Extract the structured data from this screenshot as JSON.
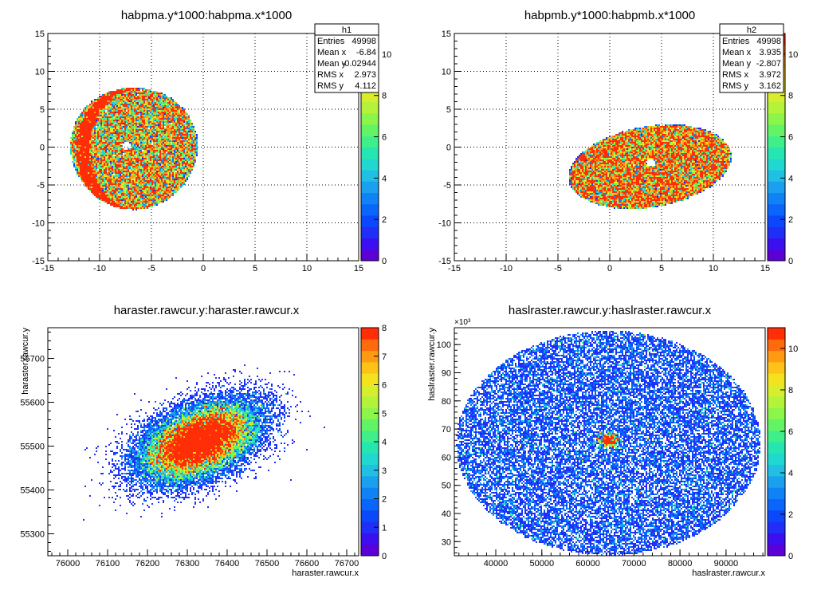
{
  "colors": {
    "background": "#ffffff",
    "frame": "#000000",
    "grid": "#000000",
    "palette": [
      "#5b00d6",
      "#3b0ff0",
      "#1f2ff8",
      "#0b48fb",
      "#0a66fa",
      "#0f82f6",
      "#1aa0ef",
      "#1fc0e4",
      "#20d8d0",
      "#25e6b0",
      "#3ff08a",
      "#62f465",
      "#8cf54a",
      "#b4f33a",
      "#d8ee2c",
      "#f4e21f",
      "#ffc318",
      "#ff9a12",
      "#ff6a0c",
      "#ff2e06"
    ]
  },
  "chart_data": [
    {
      "type": "heatmap",
      "title": "habpma.y*1000:habpma.x*1000",
      "xlabel": "",
      "ylabel": "",
      "xlim": [
        -15,
        15
      ],
      "ylim": [
        -15,
        15
      ],
      "xticks": [
        "-15",
        "-10",
        "-5",
        "0",
        "5",
        "10",
        "15"
      ],
      "yticks": [
        "-15",
        "-10",
        "-5",
        "0",
        "5",
        "10",
        "15"
      ],
      "grid": true,
      "color_scale": {
        "min": 0,
        "max": 11,
        "ticks": [
          "0",
          "2",
          "4",
          "6",
          "8",
          "10"
        ]
      },
      "stats_box": {
        "name": "h1",
        "rows": [
          {
            "label": "Entries",
            "value": "49998"
          },
          {
            "label": "Mean x",
            "value": "-6.84"
          },
          {
            "label": "Mean y",
            "value": "-0.02944"
          },
          {
            "label": "RMS x",
            "value": "2.973"
          },
          {
            "label": "RMS y",
            "value": "4.112"
          }
        ]
      },
      "distribution": {
        "center": [
          -7.5,
          -0.3
        ],
        "extent_x": [
          -12.3,
          -0.1
        ],
        "extent_y": [
          -8.2,
          7.8
        ],
        "hole_center": [
          -7.4,
          0.2
        ],
        "hole_radius": 0.5,
        "peak_region": "left edge, x near -11.5"
      }
    },
    {
      "type": "heatmap",
      "title": "habpmb.y*1000:habpmb.x*1000",
      "xlabel": "",
      "ylabel": "",
      "xlim": [
        -15,
        15
      ],
      "ylim": [
        -15,
        15
      ],
      "xticks": [
        "-15",
        "-10",
        "-5",
        "0",
        "5",
        "10",
        "15"
      ],
      "yticks": [
        "-15",
        "-10",
        "-5",
        "0",
        "5",
        "10",
        "15"
      ],
      "grid": true,
      "color_scale": {
        "min": 0,
        "max": 11,
        "ticks": [
          "0",
          "2",
          "4",
          "6",
          "8",
          "10"
        ]
      },
      "stats_box": {
        "name": "h2",
        "rows": [
          {
            "label": "Entries",
            "value": "49998"
          },
          {
            "label": "Mean x",
            "value": "3.935"
          },
          {
            "label": "Mean y",
            "value": "-2.807"
          },
          {
            "label": "RMS x",
            "value": "3.972"
          },
          {
            "label": "RMS y",
            "value": "3.162"
          }
        ]
      },
      "distribution": {
        "center": [
          3.9,
          -2.6
        ],
        "extent_x": [
          -4.2,
          11.8
        ],
        "extent_y": [
          -9.3,
          3.9
        ],
        "hole_center": [
          4.0,
          -2.1
        ],
        "hole_radius": 0.5,
        "peak_region": "lower edge, y near -6"
      }
    },
    {
      "type": "heatmap",
      "title": "haraster.rawcur.y:haraster.rawcur.x",
      "xlabel": "haraster.rawcur.x",
      "ylabel": "haraster.rawcur.y",
      "xlim": [
        75950,
        76730
      ],
      "ylim": [
        55250,
        55770
      ],
      "xticks": [
        "76000",
        "76100",
        "76200",
        "76300",
        "76400",
        "76500",
        "76600",
        "76700"
      ],
      "yticks": [
        "55300",
        "55400",
        "55500",
        "55600",
        "55700"
      ],
      "grid": false,
      "color_scale": {
        "min": 0,
        "max": 8,
        "ticks": [
          "0",
          "1",
          "2",
          "3",
          "4",
          "5",
          "6",
          "7",
          "8"
        ]
      },
      "distribution": {
        "center": [
          76330,
          55510
        ],
        "extent_x": [
          75970,
          76700
        ],
        "extent_y": [
          55270,
          55760
        ],
        "correlation": 0.45
      }
    },
    {
      "type": "heatmap",
      "title": "haslraster.rawcur.y:haslraster.rawcur.x",
      "xlabel": "haslraster.rawcur.x",
      "ylabel": "haslraster.rawcur.y",
      "exponent_label": "×10³",
      "xlim": [
        31000,
        98500
      ],
      "ylim": [
        25000,
        106000
      ],
      "xticks": [
        "40000",
        "50000",
        "60000",
        "70000",
        "80000",
        "90000"
      ],
      "yticks": [
        "30",
        "40",
        "50",
        "60",
        "70",
        "80",
        "90",
        "100"
      ],
      "grid": false,
      "color_scale": {
        "min": 0,
        "max": 11,
        "ticks": [
          "0",
          "2",
          "4",
          "6",
          "8",
          "10"
        ]
      },
      "distribution": {
        "center": [
          64500,
          65000
        ],
        "extent_x": [
          31500,
          97500
        ],
        "extent_y": [
          25500,
          105000
        ],
        "hot_spot": [
          64500,
          66000
        ]
      }
    }
  ]
}
